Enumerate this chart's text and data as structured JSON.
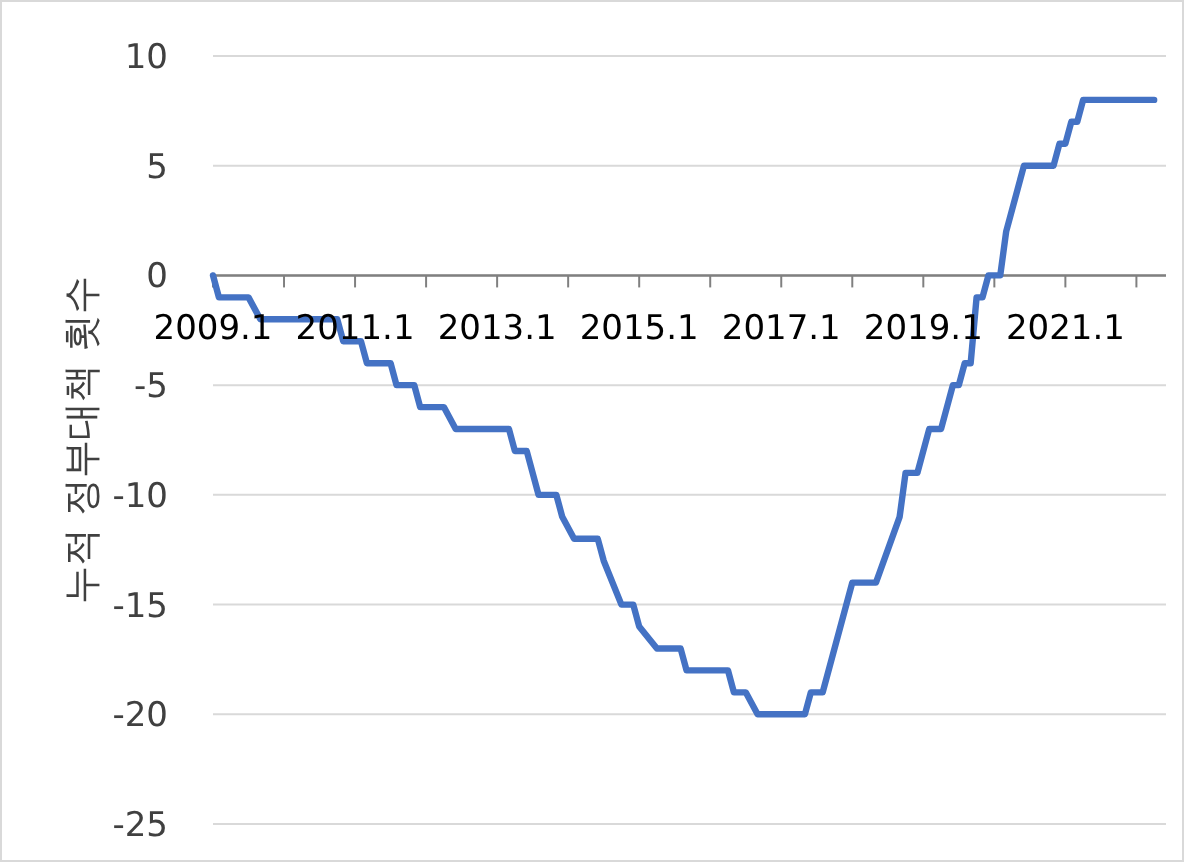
{
  "chart_data": {
    "type": "line",
    "ylabel": "누적 정부대책 횟수",
    "x": [
      "2009-01",
      "2009-02",
      "2009-07",
      "2009-09",
      "2010-10",
      "2010-11",
      "2011-02",
      "2011-03",
      "2011-07",
      "2011-08",
      "2011-11",
      "2011-12",
      "2012-04",
      "2012-06",
      "2013-03",
      "2013-04",
      "2013-06",
      "2013-08",
      "2013-11",
      "2013-12",
      "2014-02",
      "2014-06",
      "2014-07",
      "2014-10",
      "2014-12",
      "2015-01",
      "2015-04",
      "2015-08",
      "2015-09",
      "2016-04",
      "2016-05",
      "2016-07",
      "2016-09",
      "2017-05",
      "2017-06",
      "2017-08",
      "2018-01",
      "2018-05",
      "2018-09",
      "2018-10",
      "2018-12",
      "2019-02",
      "2019-04",
      "2019-06",
      "2019-07",
      "2019-08",
      "2019-09",
      "2019-10",
      "2019-11",
      "2019-12",
      "2020-02",
      "2020-03",
      "2020-06",
      "2020-11",
      "2020-12",
      "2021-01",
      "2021-02",
      "2021-03",
      "2021-04",
      "2022-04"
    ],
    "series": [
      {
        "color": "#4472c4",
        "values": [
          0,
          -1,
          -1,
          -2,
          -2,
          -3,
          -3,
          -4,
          -4,
          -5,
          -5,
          -6,
          -6,
          -7,
          -7,
          -8,
          -8,
          -10,
          -10,
          -11,
          -12,
          -12,
          -13,
          -15,
          -15,
          -16,
          -17,
          -17,
          -18,
          -18,
          -19,
          -19,
          -20,
          -20,
          -19,
          -19,
          -14,
          -14,
          -11,
          -9,
          -9,
          -7,
          -7,
          -5,
          -5,
          -4,
          -4,
          -1,
          -1,
          0,
          0,
          2,
          5,
          5,
          6,
          6,
          7,
          7,
          8,
          8
        ]
      }
    ],
    "xlim": [
      "2009-01",
      "2022-06"
    ],
    "xticks": [
      {
        "value": "2009-01",
        "label": "2009.1"
      },
      {
        "value": "2010-01",
        "label": null
      },
      {
        "value": "2011-01",
        "label": "2011.1"
      },
      {
        "value": "2012-01",
        "label": null
      },
      {
        "value": "2013-01",
        "label": "2013.1"
      },
      {
        "value": "2014-01",
        "label": null
      },
      {
        "value": "2015-01",
        "label": "2015.1"
      },
      {
        "value": "2016-01",
        "label": null
      },
      {
        "value": "2017-01",
        "label": "2017.1"
      },
      {
        "value": "2018-01",
        "label": null
      },
      {
        "value": "2019-01",
        "label": "2019.1"
      },
      {
        "value": "2020-01",
        "label": null
      },
      {
        "value": "2021-01",
        "label": "2021.1"
      },
      {
        "value": "2022-01",
        "label": null
      }
    ],
    "ylim": [
      -25,
      10
    ],
    "yticks": [
      -25,
      -20,
      -15,
      -10,
      -5,
      0,
      5,
      10
    ],
    "grid": "y"
  }
}
